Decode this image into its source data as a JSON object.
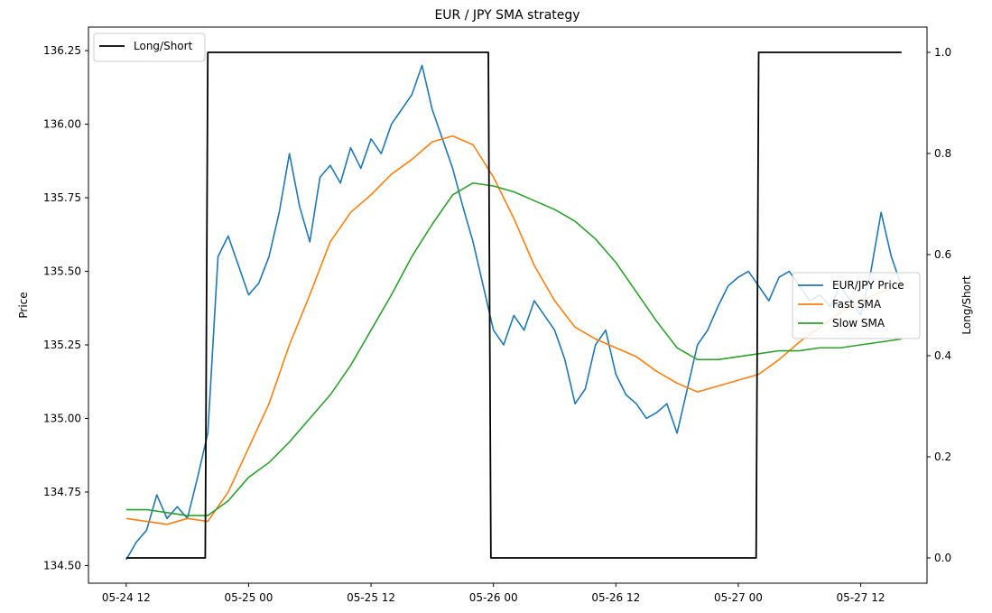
{
  "chart_data": {
    "type": "line",
    "title": "EUR / JPY SMA strategy",
    "ylabel": "Price",
    "ylabel_right": "Long/Short",
    "xlabel": "",
    "x_ticks": [
      "05-24 12",
      "05-25 00",
      "05-25 12",
      "05-26 00",
      "05-26 12",
      "05-27 00",
      "05-27 12"
    ],
    "y_ticks": [
      "134.50",
      "134.75",
      "135.00",
      "135.25",
      "135.50",
      "135.75",
      "136.00",
      "136.25"
    ],
    "y2_ticks": [
      "0.0",
      "0.2",
      "0.4",
      "0.6",
      "0.8",
      "1.0"
    ],
    "ylim": [
      134.44,
      136.33
    ],
    "y2lim": [
      -0.05,
      1.05
    ],
    "xlim_hours": [
      -3.7,
      78.5
    ],
    "x_unit": "hours since 05-24 12:00",
    "colors": {
      "price": "#1f77b4",
      "fast": "#ff7f0e",
      "slow": "#2ca02c",
      "position": "#000000"
    },
    "legend_left": {
      "placement": "upper-left",
      "entries": [
        "Long/Short"
      ]
    },
    "legend_right": {
      "placement": "center-right",
      "entries": [
        "EUR/JPY Price",
        "Fast SMA",
        "Slow SMA"
      ]
    },
    "series": [
      {
        "name": "EUR/JPY Price",
        "key": "price",
        "x": [
          0,
          1,
          2,
          3,
          4,
          5,
          6,
          7,
          8,
          9,
          10,
          11,
          12,
          13,
          14,
          15,
          16,
          17,
          18,
          19,
          20,
          21,
          22,
          23,
          24,
          25,
          26,
          27,
          28,
          29,
          30,
          31,
          32,
          33,
          34,
          35,
          36,
          37,
          38,
          39,
          40,
          41,
          42,
          43,
          44,
          45,
          46,
          47,
          48,
          49,
          50,
          51,
          52,
          53,
          54,
          55,
          56,
          57,
          58,
          59,
          60,
          61,
          62,
          63,
          64,
          65,
          66,
          67,
          68,
          69,
          70,
          71,
          72,
          73,
          74,
          75,
          76
        ],
        "values": [
          134.52,
          134.58,
          134.62,
          134.74,
          134.66,
          134.7,
          134.66,
          134.8,
          134.95,
          135.55,
          135.62,
          135.52,
          135.42,
          135.46,
          135.55,
          135.7,
          135.9,
          135.72,
          135.6,
          135.82,
          135.86,
          135.8,
          135.92,
          135.85,
          135.95,
          135.9,
          136.0,
          136.05,
          136.1,
          136.2,
          136.05,
          135.95,
          135.85,
          135.72,
          135.6,
          135.45,
          135.3,
          135.25,
          135.35,
          135.3,
          135.4,
          135.35,
          135.3,
          135.2,
          135.05,
          135.1,
          135.25,
          135.3,
          135.15,
          135.08,
          135.05,
          135.0,
          135.02,
          135.05,
          134.95,
          135.1,
          135.25,
          135.3,
          135.38,
          135.45,
          135.48,
          135.5,
          135.45,
          135.4,
          135.48,
          135.5,
          135.45,
          135.4,
          135.42,
          135.38,
          135.45,
          135.4,
          135.35,
          135.5,
          135.7,
          135.55,
          135.45
        ]
      },
      {
        "name": "Fast SMA",
        "key": "fast",
        "x": [
          0,
          2,
          4,
          6,
          8,
          10,
          12,
          14,
          16,
          18,
          20,
          22,
          24,
          26,
          28,
          30,
          32,
          34,
          36,
          38,
          40,
          42,
          44,
          46,
          48,
          50,
          52,
          54,
          56,
          58,
          60,
          62,
          64,
          66,
          68,
          70,
          72,
          74,
          76
        ],
        "values": [
          134.66,
          134.65,
          134.64,
          134.66,
          134.65,
          134.75,
          134.9,
          135.05,
          135.25,
          135.42,
          135.6,
          135.7,
          135.76,
          135.83,
          135.88,
          135.94,
          135.96,
          135.93,
          135.82,
          135.68,
          135.52,
          135.4,
          135.31,
          135.27,
          135.24,
          135.21,
          135.16,
          135.12,
          135.09,
          135.11,
          135.13,
          135.15,
          135.2,
          135.26,
          135.31,
          135.36,
          135.4,
          135.43,
          135.45
        ]
      },
      {
        "name": "Slow SMA",
        "key": "slow",
        "x": [
          0,
          2,
          4,
          6,
          8,
          10,
          12,
          14,
          16,
          18,
          20,
          22,
          24,
          26,
          28,
          30,
          32,
          34,
          36,
          38,
          40,
          42,
          44,
          46,
          48,
          50,
          52,
          54,
          56,
          58,
          60,
          62,
          64,
          66,
          68,
          70,
          72,
          74,
          76
        ],
        "values": [
          134.69,
          134.69,
          134.68,
          134.67,
          134.67,
          134.72,
          134.8,
          134.85,
          134.92,
          135.0,
          135.08,
          135.18,
          135.3,
          135.42,
          135.55,
          135.66,
          135.76,
          135.8,
          135.79,
          135.77,
          135.74,
          135.71,
          135.67,
          135.61,
          135.53,
          135.43,
          135.33,
          135.24,
          135.2,
          135.2,
          135.21,
          135.22,
          135.23,
          135.23,
          135.24,
          135.24,
          135.25,
          135.26,
          135.27
        ]
      },
      {
        "name": "Long/Short",
        "key": "position",
        "axis": "right",
        "x": [
          0,
          7.75,
          8.0,
          35.5,
          35.75,
          61.75,
          62.0,
          76.0
        ],
        "values": [
          0,
          0,
          1,
          1,
          0,
          0,
          1,
          1
        ]
      }
    ]
  }
}
